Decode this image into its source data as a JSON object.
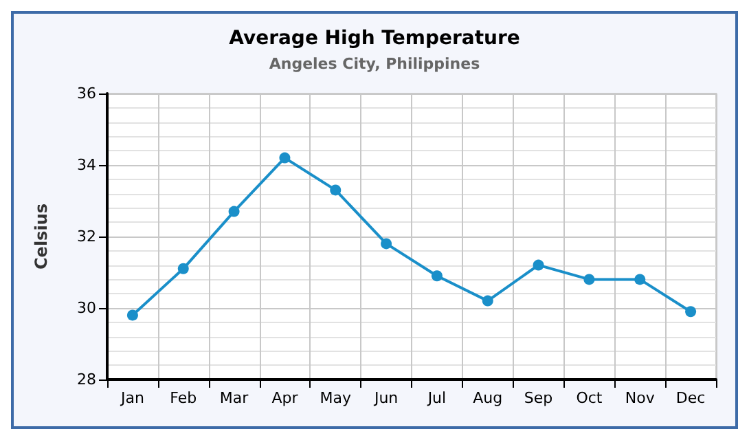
{
  "chart_data": {
    "type": "line",
    "title": "Average High Temperature",
    "subtitle": "Angeles City, Philippines",
    "ylabel": "Celsius",
    "categories": [
      "Jan",
      "Feb",
      "Mar",
      "Apr",
      "May",
      "Jun",
      "Jul",
      "Aug",
      "Sep",
      "Oct",
      "Nov",
      "Dec"
    ],
    "series": [
      {
        "color": "#1a8fc9",
        "values": [
          29.8,
          31.1,
          32.7,
          34.2,
          33.3,
          31.8,
          30.9,
          30.2,
          31.2,
          30.8,
          30.8,
          29.9
        ]
      }
    ],
    "ylim": [
      28,
      36
    ],
    "yticks": [
      28,
      30,
      32,
      34,
      36
    ],
    "grid": true,
    "marker": "circle",
    "line_style": "solid"
  }
}
